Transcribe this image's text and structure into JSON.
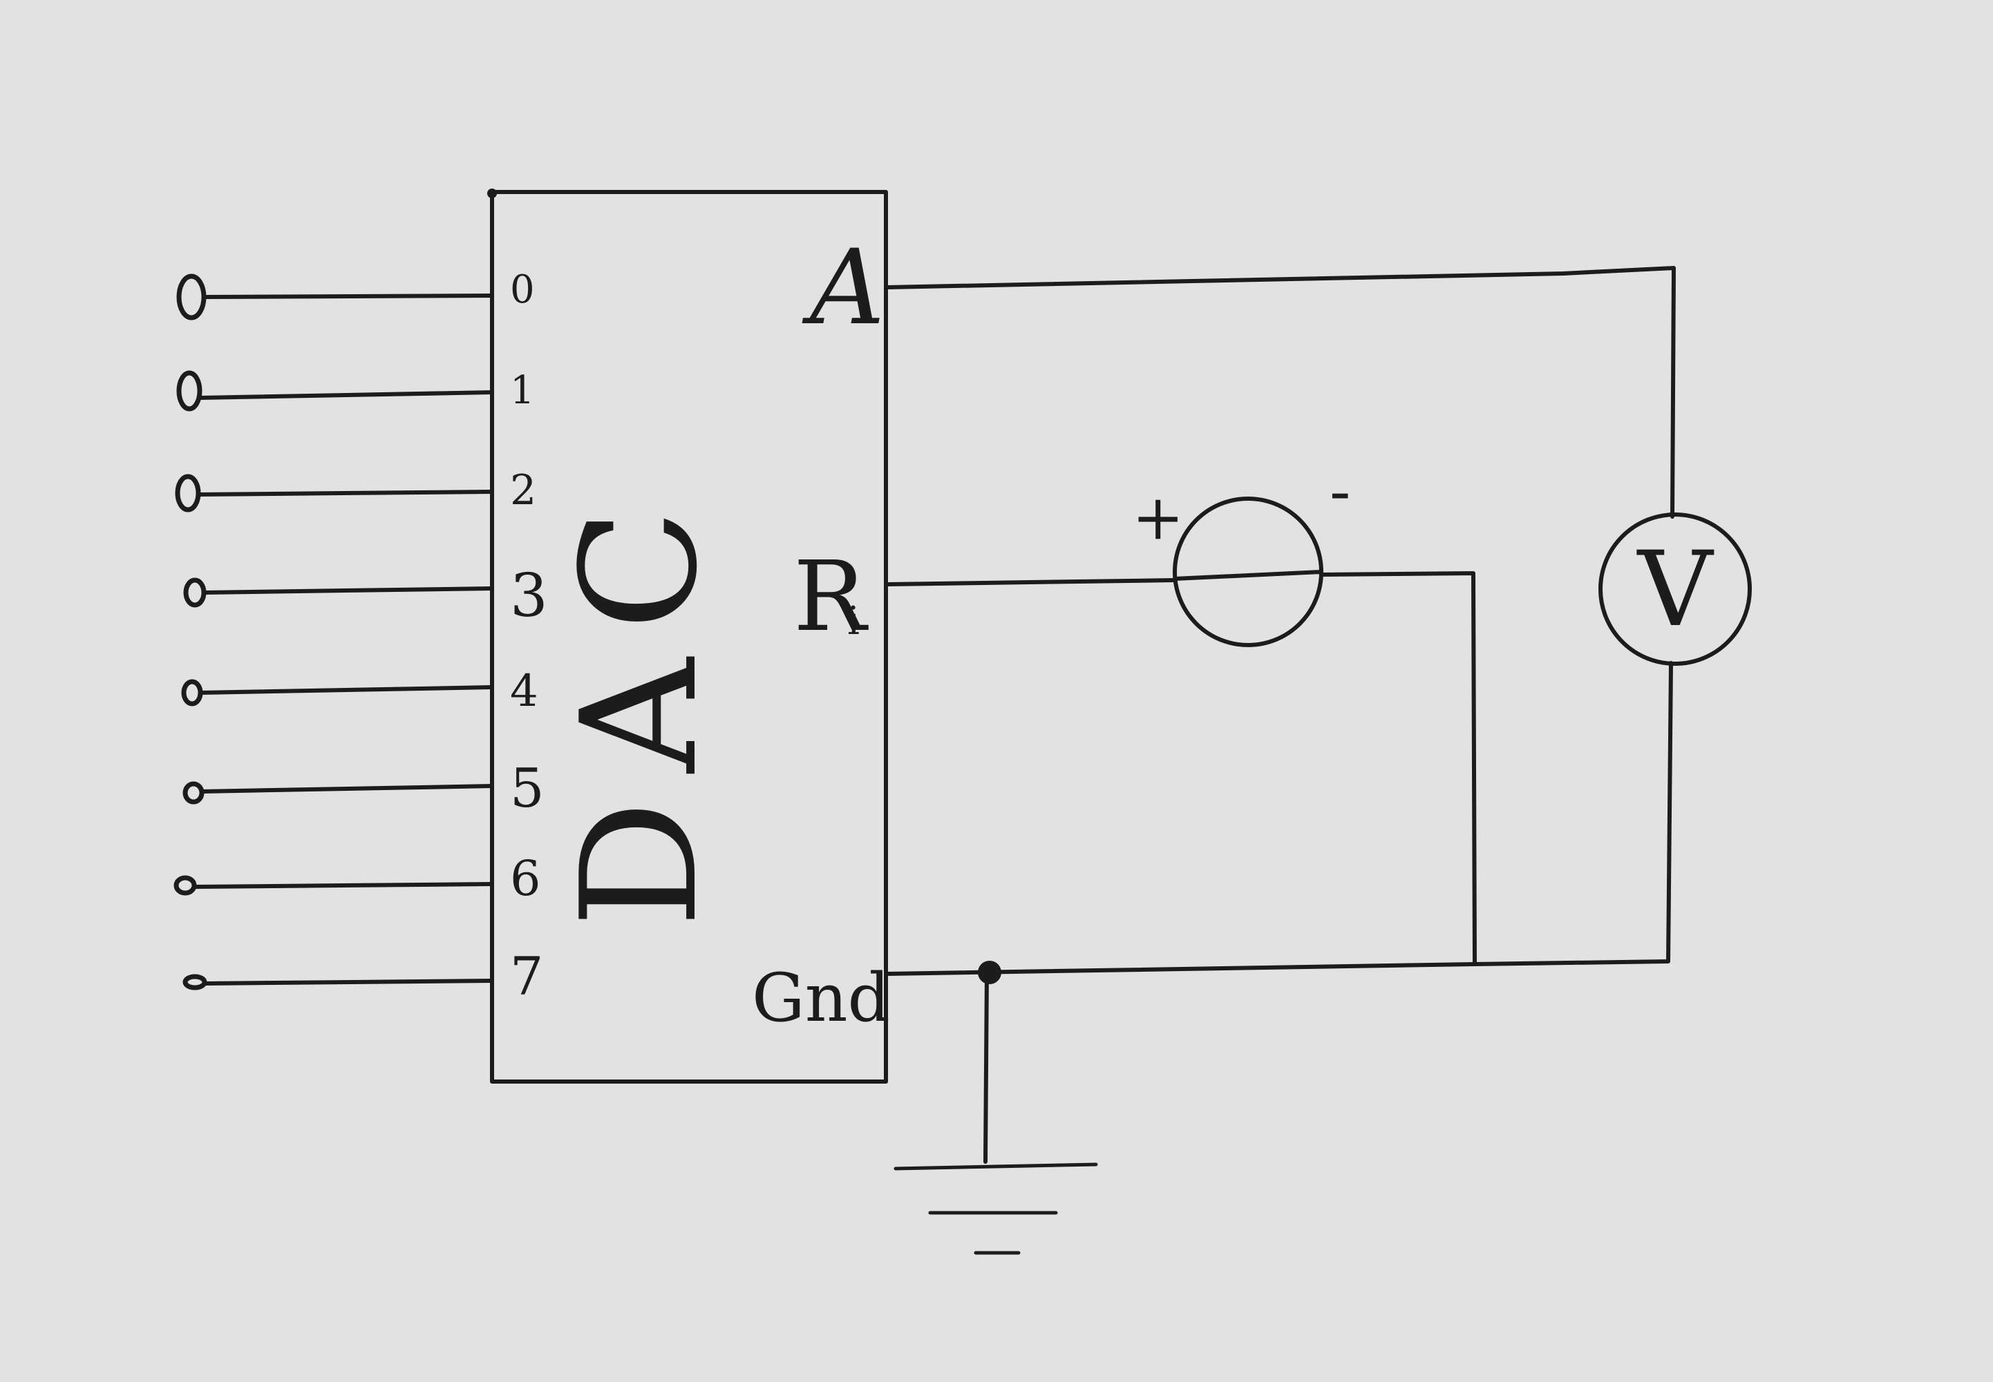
{
  "dac": {
    "label": "DAC",
    "inputs": [
      "0",
      "1",
      "2",
      "3",
      "4",
      "5",
      "6",
      "7"
    ],
    "outputs": {
      "a": "A",
      "ri_main": "R",
      "ri_sub": "i",
      "gnd": "Gnd"
    }
  },
  "source": {
    "plus": "+",
    "minus": "-"
  },
  "voltmeter": {
    "label": "V"
  }
}
